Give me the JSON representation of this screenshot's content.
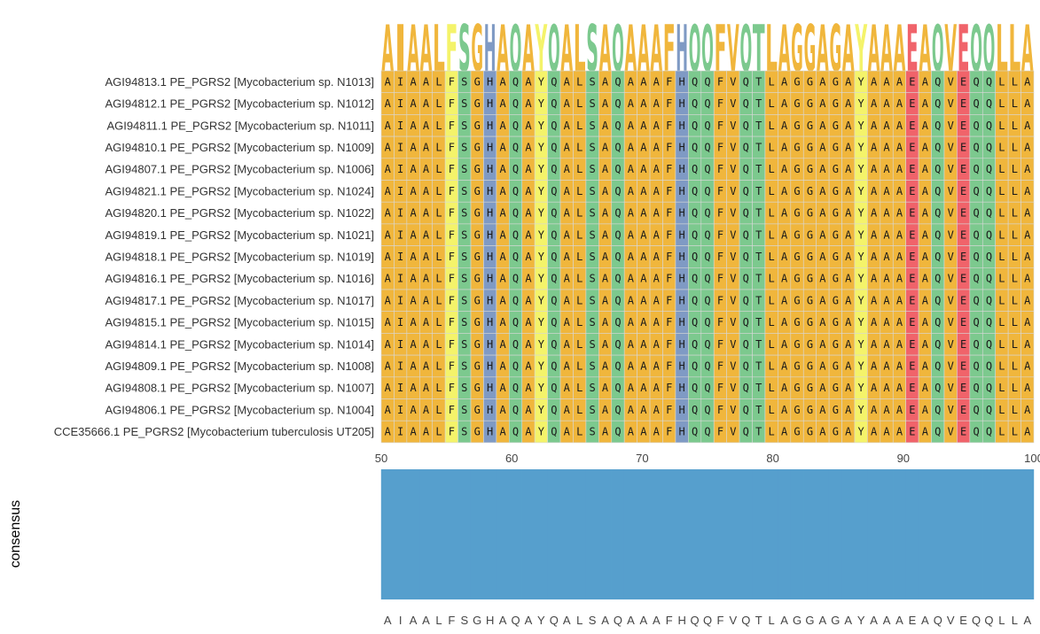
{
  "chart_data": {
    "type": "heatmap",
    "title": "",
    "x_range": [
      50,
      100
    ],
    "x_ticks": [
      50,
      60,
      70,
      80,
      90,
      100
    ],
    "consensus_label": "consensus",
    "consensus_sequence": "AIAALFSGHAQAYQALSAQAAAFHQQFVQTLAGGAGAYAAAEAQVEQQLLA",
    "consensus_values": [
      1,
      1,
      1,
      1,
      1,
      1,
      1,
      1,
      1,
      1,
      1,
      1,
      1,
      1,
      1,
      1,
      1,
      1,
      1,
      1,
      1,
      1,
      1,
      1,
      1,
      1,
      1,
      1,
      1,
      1,
      1,
      1,
      1,
      1,
      1,
      1,
      1,
      1,
      1,
      1,
      1,
      1,
      1,
      1,
      1,
      1,
      1,
      1,
      1,
      1,
      1
    ],
    "sequences": [
      {
        "label": "AGI94813.1 PE_PGRS2 [Mycobacterium sp. N1013]",
        "seq": "AIAALFSGHAQAYQALSAQAAAFHQQFVQTLAGGAGAYAAAEAQVEQQLLA"
      },
      {
        "label": "AGI94812.1 PE_PGRS2 [Mycobacterium sp. N1012]",
        "seq": "AIAALFSGHAQAYQALSAQAAAFHQQFVQTLAGGAGAYAAAEAQVEQQLLA"
      },
      {
        "label": "AGI94811.1 PE_PGRS2 [Mycobacterium sp. N1011]",
        "seq": "AIAALFSGHAQAYQALSAQAAAFHQQFVQTLAGGAGAYAAAEAQVEQQLLA"
      },
      {
        "label": "AGI94810.1 PE_PGRS2 [Mycobacterium sp. N1009]",
        "seq": "AIAALFSGHAQAYQALSAQAAAFHQQFVQTLAGGAGAYAAAEAQVEQQLLA"
      },
      {
        "label": "AGI94807.1 PE_PGRS2 [Mycobacterium sp. N1006]",
        "seq": "AIAALFSGHAQAYQALSAQAAAFHQQFVQTLAGGAGAYAAAEAQVEQQLLA"
      },
      {
        "label": "AGI94821.1 PE_PGRS2 [Mycobacterium sp. N1024]",
        "seq": "AIAALFSGHAQAYQALSAQAAAFHQQFVQTLAGGAGAYAAAEAQVEQQLLA"
      },
      {
        "label": "AGI94820.1 PE_PGRS2 [Mycobacterium sp. N1022]",
        "seq": "AIAALFSGHAQAYQALSAQAAAFHQQFVQTLAGGAGAYAAAEAQVEQQLLA"
      },
      {
        "label": "AGI94819.1 PE_PGRS2 [Mycobacterium sp. N1021]",
        "seq": "AIAALFSGHAQAYQALSAQAAAFHQQFVQTLAGGAGAYAAAEAQVEQQLLA"
      },
      {
        "label": "AGI94818.1 PE_PGRS2 [Mycobacterium sp. N1019]",
        "seq": "AIAALFSGHAQAYQALSAQAAAFHQQFVQTLAGGAGAYAAAEAQVEQQLLA"
      },
      {
        "label": "AGI94816.1 PE_PGRS2 [Mycobacterium sp. N1016]",
        "seq": "AIAALFSGHAQAYQALSAQAAAFHQQFVQTLAGGAGAYAAAEAQVEQQLLA"
      },
      {
        "label": "AGI94817.1 PE_PGRS2 [Mycobacterium sp. N1017]",
        "seq": "AIAALFSGHAQAYQALSAQAAAFHQQFVQTLAGGAGAYAAAEAQVEQQLLA"
      },
      {
        "label": "AGI94815.1 PE_PGRS2 [Mycobacterium sp. N1015]",
        "seq": "AIAALFSGHAQAYQALSAQAAAFHQQFVQTLAGGAGAYAAAEAQVEQQLLA"
      },
      {
        "label": "AGI94814.1 PE_PGRS2 [Mycobacterium sp. N1014]",
        "seq": "AIAALFSGHAQAYQALSAQAAAFHQQFVQTLAGGAGAYAAAEAQVEQQLLA"
      },
      {
        "label": "AGI94809.1 PE_PGRS2 [Mycobacterium sp. N1008]",
        "seq": "AIAALFSGHAQAYQALSAQAAAFHQQFVQTLAGGAGAYAAAEAQVEQQLLA"
      },
      {
        "label": "AGI94808.1 PE_PGRS2 [Mycobacterium sp. N1007]",
        "seq": "AIAALFSGHAQAYQALSAQAAAFHQQFVQTLAGGAGAYAAAEAQVEQQLLA"
      },
      {
        "label": "AGI94806.1 PE_PGRS2 [Mycobacterium sp. N1004]",
        "seq": "AIAALFSGHAQAYQALSAQAAAFHQQFVQTLAGGAGAYAAAEAQVEQQLLA"
      },
      {
        "label": "CCE35666.1 PE_PGRS2 [Mycobacterium tuberculosis UT205]",
        "seq": "AIAALFSGHAQAYQALSAQAAAFHQQFVQTLAGGAGAYAAAEAQVEQQLLA"
      }
    ],
    "residue_colors": {
      "A": "#f0b63c",
      "I": "#f0b63c",
      "L": "#f0b63c",
      "V": "#f0b63c",
      "F": "#f0b63c",
      "G": "#f0b63c",
      "S": "#7cc98e",
      "Q": "#7cc98e",
      "T": "#7cc98e",
      "Y": "#f4f36a",
      "H": "#7f9ac4",
      "E": "#f0636a"
    },
    "special_cell_colors": {
      "F_pos55": "#f4f36a"
    },
    "consensus_bar_color": "#569fcd"
  }
}
